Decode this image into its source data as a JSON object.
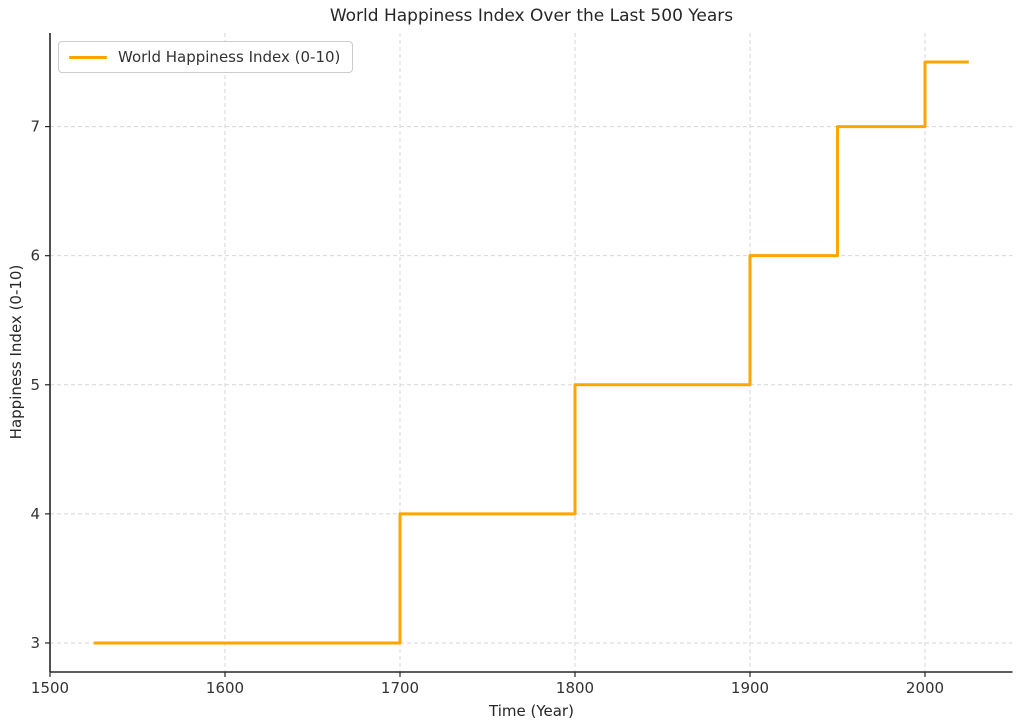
{
  "figure": {
    "background": "#ffffff"
  },
  "chart_data": {
    "type": "line",
    "subtype": "step",
    "title": "World Happiness Index Over the Last 500 Years",
    "xlabel": "Time (Year)",
    "ylabel": "Happiness Index (0-10)",
    "xlim": [
      1500,
      2050
    ],
    "ylim": [
      2.775,
      7.725
    ],
    "x_ticks": [
      1500,
      1600,
      1700,
      1800,
      1900,
      2000
    ],
    "y_ticks": [
      3,
      4,
      5,
      6,
      7
    ],
    "grid": {
      "visible": true,
      "style": "dashed",
      "color": "#d7d7d7"
    },
    "axis_color": "#262626",
    "tick_label_color": "#333333",
    "legend": {
      "position": "upper-left",
      "entries": [
        {
          "label": "World Happiness Index (0-10)",
          "color": "#FFA500"
        }
      ]
    },
    "series": [
      {
        "name": "World Happiness Index (0-10)",
        "color": "#FFA500",
        "line_width": 3,
        "steps": [
          {
            "from_year": 1525,
            "to_year": 1700,
            "value": 3
          },
          {
            "from_year": 1700,
            "to_year": 1800,
            "value": 4
          },
          {
            "from_year": 1800,
            "to_year": 1900,
            "value": 5
          },
          {
            "from_year": 1900,
            "to_year": 1950,
            "value": 6
          },
          {
            "from_year": 1950,
            "to_year": 2000,
            "value": 7
          },
          {
            "from_year": 2000,
            "to_year": 2025,
            "value": 7.5
          }
        ]
      }
    ]
  }
}
